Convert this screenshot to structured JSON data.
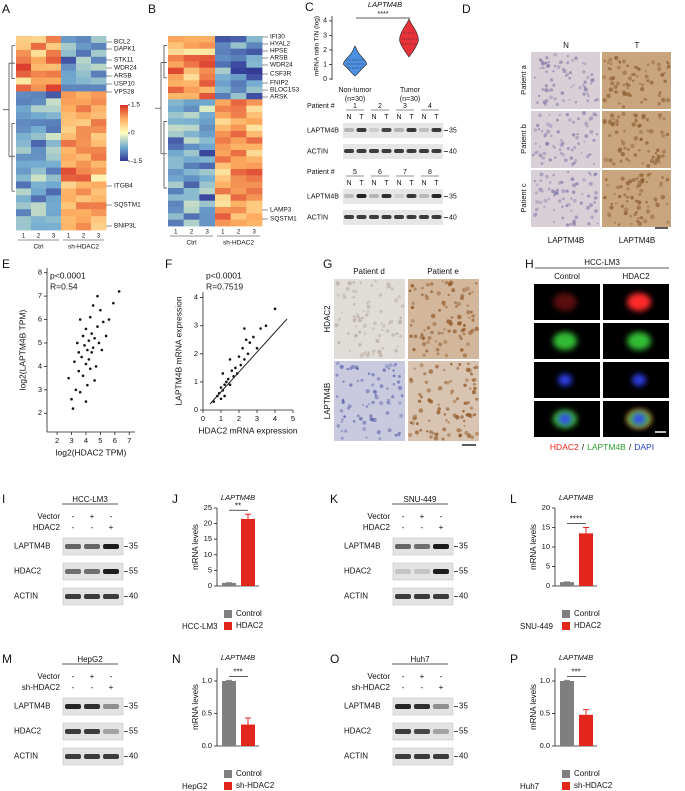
{
  "A": {
    "letter": "A",
    "genes": [
      "BCL2",
      "DAPK1",
      "STK11",
      "WDR24",
      "ARSB",
      "USP10",
      "VPS28",
      "ITGB4",
      "SQSTM1",
      "BNIP3L"
    ],
    "samples": [
      "1",
      "2",
      "3",
      "1",
      "2",
      "3"
    ],
    "groups": [
      "Ctrl",
      "sh-HDAC2"
    ],
    "colorbar_ticks": [
      1.5,
      0,
      -1.5
    ]
  },
  "B": {
    "letter": "B",
    "genes": [
      "IFI30",
      "HYAL2",
      "HPSE",
      "ARSB",
      "WDR24",
      "CSF3R",
      "FNIP2",
      "BLOC1S3",
      "ARSK",
      "LAMP3",
      "SQSTM1"
    ],
    "samples": [
      "1",
      "2",
      "3",
      "1",
      "2",
      "3"
    ],
    "groups": [
      "Ctrl",
      "sh-HDAC2"
    ]
  },
  "C": {
    "letter": "C",
    "title": "LAPTM4B",
    "ylabel": "mRNA ratio T/N (log)",
    "ylim": [
      0,
      4.2
    ],
    "yticks": [
      0,
      1,
      2,
      3,
      4
    ],
    "significance": "****",
    "groups": [
      {
        "name": "Non-tumor",
        "n": "(n=30)",
        "color": "#4d8fe0"
      },
      {
        "name": "Tumor",
        "n": "(n=30)",
        "color": "#e8323a"
      }
    ],
    "blots": [
      {
        "header": "Patient #",
        "patients": [
          "1",
          "2",
          "3",
          "4"
        ]
      },
      {
        "header": "Patient #",
        "patients": [
          "5",
          "6",
          "7",
          "8"
        ]
      }
    ],
    "lanes": [
      "N",
      "T"
    ],
    "rows": [
      {
        "name": "LAPTM4B",
        "marker": 35
      },
      {
        "name": "ACTIN",
        "marker": 40
      }
    ]
  },
  "D": {
    "letter": "D",
    "columns": [
      "N",
      "T"
    ],
    "rows": [
      "Patient a",
      "Patient b",
      "Patient c"
    ],
    "stain": "LAPTM4B"
  },
  "E": {
    "letter": "E",
    "p": "p<0.0001",
    "r": "R=0.54",
    "xlabel": "log2(HDAC2 TPM)",
    "ylabel": "log2(LAPTM4B TPM)",
    "xlim": [
      1.3,
      7.4
    ],
    "xticks": [
      2,
      3,
      4,
      5,
      6,
      7
    ],
    "ylim": [
      1.2,
      8.2
    ],
    "yticks": [
      2,
      3,
      4,
      5,
      6,
      7,
      8
    ],
    "x": [
      2.8,
      3.0,
      3.2,
      3.3,
      3.4,
      3.5,
      3.5,
      3.6,
      3.7,
      3.8,
      3.8,
      3.9,
      4.0,
      4.0,
      4.1,
      4.1,
      4.2,
      4.2,
      4.3,
      4.3,
      4.4,
      4.4,
      4.5,
      4.5,
      4.6,
      4.7,
      4.8,
      4.9,
      5.0,
      5.1,
      5.2,
      5.4,
      5.6,
      5.9,
      6.3,
      3.1,
      3.6,
      4.6,
      4.0,
      4.8
    ],
    "y": [
      3.5,
      2.6,
      4.2,
      3.0,
      5.0,
      3.8,
      4.6,
      2.9,
      4.4,
      5.3,
      3.6,
      4.9,
      4.1,
      5.6,
      3.2,
      4.7,
      5.1,
      4.3,
      6.1,
      3.9,
      5.4,
      4.6,
      4.8,
      6.6,
      5.2,
      4.0,
      5.7,
      5.0,
      6.4,
      4.7,
      5.9,
      5.3,
      6.0,
      6.7,
      7.2,
      2.2,
      6.0,
      3.4,
      2.5,
      7.0
    ]
  },
  "F": {
    "letter": "F",
    "p": "p<0.0001",
    "r": "R=0.7519",
    "xlabel": "HDAC2 mRNA expression",
    "ylabel": "LAPTM4B mRNA expression",
    "xlim": [
      0,
      5
    ],
    "xticks": [
      0,
      1,
      2,
      3,
      4,
      5
    ],
    "ylim": [
      0,
      4.2
    ],
    "yticks": [
      0,
      1,
      2,
      3,
      4
    ],
    "x": [
      0.6,
      0.8,
      0.9,
      1.0,
      1.0,
      1.1,
      1.2,
      1.2,
      1.3,
      1.4,
      1.5,
      1.6,
      1.7,
      1.8,
      1.9,
      2.0,
      2.1,
      2.2,
      2.3,
      2.4,
      2.5,
      2.6,
      2.8,
      3.0,
      3.2,
      3.5,
      4.0,
      1.1,
      1.5,
      2.3
    ],
    "y": [
      0.3,
      0.5,
      0.6,
      0.4,
      0.8,
      0.7,
      0.9,
      0.5,
      1.0,
      1.1,
      0.9,
      1.4,
      1.2,
      1.5,
      1.3,
      1.9,
      1.6,
      2.2,
      1.8,
      2.5,
      2.0,
      2.4,
      2.6,
      2.2,
      2.9,
      3.0,
      3.6,
      1.3,
      1.8,
      2.9
    ]
  },
  "G": {
    "letter": "G",
    "columns": [
      "Patient d",
      "Patient e"
    ],
    "rows": [
      "HDAC2",
      "LAPTM4B"
    ]
  },
  "H": {
    "letter": "H",
    "cell_line": "HCC-LM3",
    "columns": [
      "Control",
      "HDAC2"
    ],
    "legend": [
      {
        "text": "HDAC2",
        "color": "#e8231a"
      },
      {
        "text": "LAPTM4B",
        "color": "#2ca02c"
      },
      {
        "text": "DAPI",
        "color": "#1f3fbf"
      }
    ],
    "separator": "/"
  },
  "I": {
    "letter": "I",
    "cell_line": "HCC-LM3",
    "treatments": [
      {
        "name": "Vector",
        "signs": [
          "-",
          "+",
          "-"
        ]
      },
      {
        "name": "HDAC2",
        "signs": [
          "-",
          "-",
          "+"
        ]
      }
    ],
    "rows": [
      {
        "name": "LAPTM4B",
        "marker": 35
      },
      {
        "name": "HDAC2",
        "marker": 55
      },
      {
        "name": "ACTIN",
        "marker": 40
      }
    ]
  },
  "J": {
    "letter": "J",
    "title": "LAPTM4B",
    "ylabel": "mRNA levels",
    "ylim": [
      0,
      25
    ],
    "yticks": [
      0,
      5,
      10,
      15,
      20,
      25
    ],
    "cell_line": "HCC-LM3",
    "significance": "**",
    "series": [
      {
        "name": "Control",
        "color": "#7f7f7f",
        "value": 1,
        "error": 0.05
      },
      {
        "name": "HDAC2",
        "color": "#e3261c",
        "value": 21.5,
        "error": 1.5
      }
    ]
  },
  "K": {
    "letter": "K",
    "cell_line": "SNU-449",
    "treatments": [
      {
        "name": "Vector",
        "signs": [
          "-",
          "+",
          "-"
        ]
      },
      {
        "name": "HDAC2",
        "signs": [
          "-",
          "-",
          "+"
        ]
      }
    ],
    "rows": [
      {
        "name": "LAPTM4B",
        "marker": 35
      },
      {
        "name": "HDAC2",
        "marker": 55
      },
      {
        "name": "ACTIN",
        "marker": 40
      }
    ]
  },
  "L": {
    "letter": "L",
    "title": "LAPTM4B",
    "ylabel": "mRNA levels",
    "ylim": [
      0,
      20
    ],
    "yticks": [
      0,
      5,
      10,
      15,
      20
    ],
    "cell_line": "SNU-449",
    "significance": "****",
    "series": [
      {
        "name": "Control",
        "color": "#7f7f7f",
        "value": 1,
        "error": 0.05
      },
      {
        "name": "HDAC2",
        "color": "#e3261c",
        "value": 13.5,
        "error": 1.5
      }
    ]
  },
  "M": {
    "letter": "M",
    "cell_line": "HepG2",
    "treatments": [
      {
        "name": "Vector",
        "signs": [
          "-",
          "+",
          "-"
        ]
      },
      {
        "name": "sh-HDAC2",
        "signs": [
          "-",
          "-",
          "+"
        ]
      }
    ],
    "rows": [
      {
        "name": "LAPTM4B",
        "marker": 35
      },
      {
        "name": "HDAC2",
        "marker": 55
      },
      {
        "name": "ACTIN",
        "marker": 40
      }
    ]
  },
  "N": {
    "letter": "N",
    "title": "LAPTM4B",
    "ylabel": "mRNA levels",
    "ylim": [
      0,
      1.2
    ],
    "yticks": [
      {
        "value": 0,
        "label": "0.0"
      },
      {
        "value": 0.5,
        "label": "0.5"
      },
      {
        "value": 1,
        "label": "1.0"
      }
    ],
    "cell_line": "HepG2",
    "significance": "***",
    "series": [
      {
        "name": "Control",
        "color": "#7f7f7f",
        "value": 1,
        "error": 0.01
      },
      {
        "name": "sh-HDAC2",
        "color": "#e3261c",
        "value": 0.33,
        "error": 0.1
      }
    ]
  },
  "O": {
    "letter": "O",
    "cell_line": "Huh7",
    "treatments": [
      {
        "name": "Vector",
        "signs": [
          "-",
          "+",
          "-"
        ]
      },
      {
        "name": "sh-HDAC2",
        "signs": [
          "-",
          "-",
          "+"
        ]
      }
    ],
    "rows": [
      {
        "name": "LAPTM4B",
        "marker": 35
      },
      {
        "name": "HDAC2",
        "marker": 55
      },
      {
        "name": "ACTIN",
        "marker": 40
      }
    ]
  },
  "P": {
    "letter": "P",
    "title": "LAPTM4B",
    "ylabel": "mRNA levels",
    "ylim": [
      0,
      1.2
    ],
    "yticks": [
      {
        "value": 0,
        "label": "0.0"
      },
      {
        "value": 0.5,
        "label": "0.5"
      },
      {
        "value": 1,
        "label": "1.0"
      }
    ],
    "cell_line": "Huh7",
    "significance": "***",
    "series": [
      {
        "name": "Control",
        "color": "#7f7f7f",
        "value": 1,
        "error": 0.01
      },
      {
        "name": "sh-HDAC2",
        "color": "#e3261c",
        "value": 0.48,
        "error": 0.08
      }
    ]
  }
}
